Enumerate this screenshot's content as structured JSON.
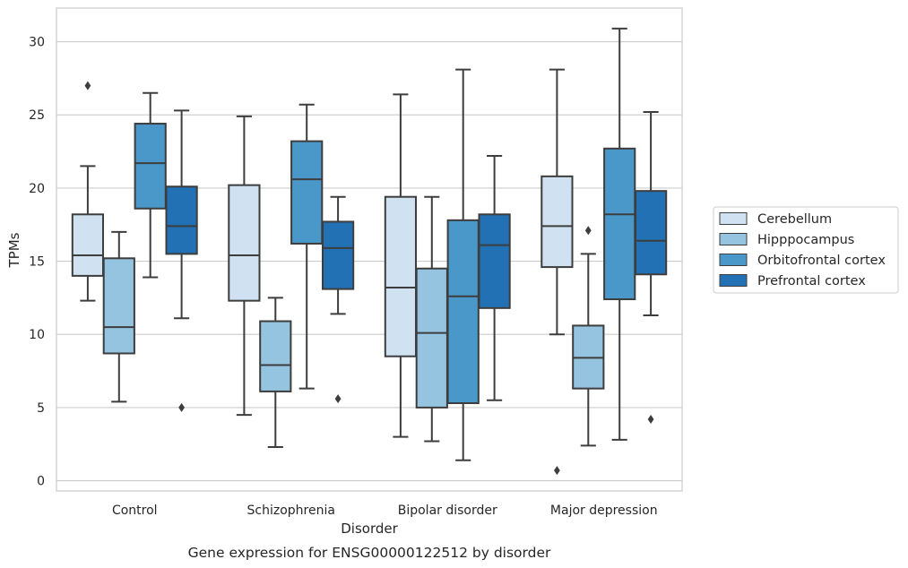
{
  "chart_data": {
    "type": "box",
    "title": "",
    "caption": "Gene expression for ENSG00000122512 by disorder",
    "xlabel": "Disorder",
    "ylabel": "TPMs",
    "ylim": [
      -0.7,
      32.3
    ],
    "yticks": [
      0,
      5,
      10,
      15,
      20,
      25,
      30
    ],
    "grid": "horizontal",
    "legend_position": "right",
    "categories": [
      "Control",
      "Schizophrenia",
      "Bipolar disorder",
      "Major depression"
    ],
    "series": [
      {
        "name": "Cerebellum",
        "color": "#d0e1f2",
        "boxes": [
          {
            "whisker_low": 12.3,
            "q1": 14.0,
            "median": 15.4,
            "q3": 18.2,
            "whisker_high": 21.5,
            "outliers": [
              27.0
            ]
          },
          {
            "whisker_low": 4.5,
            "q1": 12.3,
            "median": 15.4,
            "q3": 20.2,
            "whisker_high": 24.9,
            "outliers": []
          },
          {
            "whisker_low": 3.0,
            "q1": 8.5,
            "median": 13.2,
            "q3": 19.4,
            "whisker_high": 26.4,
            "outliers": []
          },
          {
            "whisker_low": 10.0,
            "q1": 14.6,
            "median": 17.4,
            "q3": 20.8,
            "whisker_high": 28.1,
            "outliers": [
              0.7
            ]
          }
        ]
      },
      {
        "name": "Hipppocampus",
        "color": "#94c4df",
        "boxes": [
          {
            "whisker_low": 5.4,
            "q1": 8.7,
            "median": 10.5,
            "q3": 15.2,
            "whisker_high": 17.0,
            "outliers": []
          },
          {
            "whisker_low": 2.3,
            "q1": 6.1,
            "median": 7.9,
            "q3": 10.9,
            "whisker_high": 12.5,
            "outliers": []
          },
          {
            "whisker_low": 2.7,
            "q1": 5.0,
            "median": 10.1,
            "q3": 14.5,
            "whisker_high": 19.4,
            "outliers": []
          },
          {
            "whisker_low": 2.4,
            "q1": 6.3,
            "median": 8.4,
            "q3": 10.6,
            "whisker_high": 15.5,
            "outliers": [
              17.1
            ]
          }
        ]
      },
      {
        "name": "Orbitofrontal cortex",
        "color": "#4a98c9",
        "boxes": [
          {
            "whisker_low": 13.9,
            "q1": 18.6,
            "median": 21.7,
            "q3": 24.4,
            "whisker_high": 26.5,
            "outliers": []
          },
          {
            "whisker_low": 6.3,
            "q1": 16.2,
            "median": 20.6,
            "q3": 23.2,
            "whisker_high": 25.7,
            "outliers": []
          },
          {
            "whisker_low": 1.4,
            "q1": 5.3,
            "median": 12.6,
            "q3": 17.8,
            "whisker_high": 28.1,
            "outliers": []
          },
          {
            "whisker_low": 2.8,
            "q1": 12.4,
            "median": 18.2,
            "q3": 22.7,
            "whisker_high": 30.9,
            "outliers": []
          }
        ]
      },
      {
        "name": "Prefrontal cortex",
        "color": "#2271b5",
        "boxes": [
          {
            "whisker_low": 11.1,
            "q1": 15.5,
            "median": 17.4,
            "q3": 20.1,
            "whisker_high": 25.3,
            "outliers": [
              5.0
            ]
          },
          {
            "whisker_low": 11.4,
            "q1": 13.1,
            "median": 15.9,
            "q3": 17.7,
            "whisker_high": 19.4,
            "outliers": [
              5.6
            ]
          },
          {
            "whisker_low": 5.5,
            "q1": 11.8,
            "median": 16.1,
            "q3": 18.2,
            "whisker_high": 22.2,
            "outliers": []
          },
          {
            "whisker_low": 11.3,
            "q1": 14.1,
            "median": 16.4,
            "q3": 19.8,
            "whisker_high": 25.2,
            "outliers": [
              4.2
            ]
          }
        ]
      }
    ]
  }
}
